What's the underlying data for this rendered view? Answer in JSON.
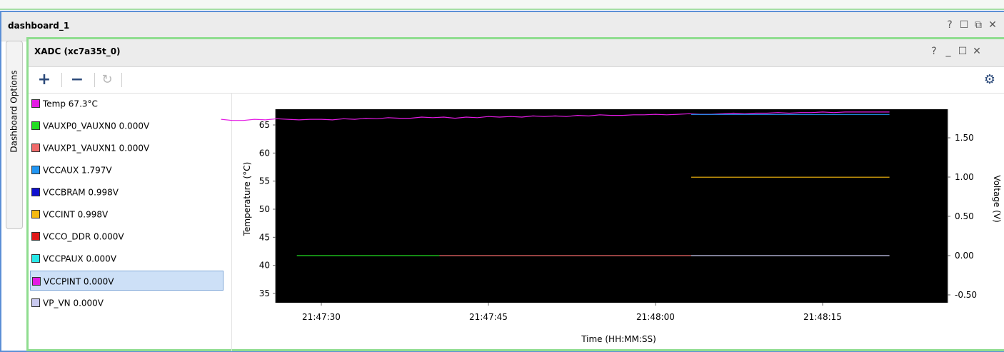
{
  "dashboard": {
    "title": "dashboard_1",
    "icons": [
      "?",
      "☐",
      "⧉",
      "✕"
    ]
  },
  "side_tab": {
    "label": "Dashboard Options"
  },
  "xadc": {
    "title": "XADC (xc7a35t_0)",
    "icons": [
      "?",
      "_",
      "☐",
      "✕"
    ],
    "toolbar": {
      "add": "+",
      "remove": "−",
      "refresh": "↻",
      "settings": "⚙"
    }
  },
  "legend": [
    {
      "label": "Temp  67.3°C",
      "color": "#e41be4"
    },
    {
      "label": "VAUXP0_VAUXN0  0.000V",
      "color": "#22dd22"
    },
    {
      "label": "VAUXP1_VAUXN1  0.000V",
      "color": "#f06a6a"
    },
    {
      "label": "VCCAUX  1.797V",
      "color": "#2196f3"
    },
    {
      "label": "VCCBRAM  0.998V",
      "color": "#1010d0"
    },
    {
      "label": "VCCINT  0.998V",
      "color": "#f5b90f"
    },
    {
      "label": "VCCO_DDR  0.000V",
      "color": "#e01818"
    },
    {
      "label": "VCCPAUX  0.000V",
      "color": "#28e8e8"
    },
    {
      "label": "VCCPINT  0.000V",
      "color": "#e41be4",
      "selected": true
    },
    {
      "label": "VP_VN  0.000V",
      "color": "#c9c9f0"
    }
  ],
  "chart_data": {
    "type": "line",
    "xlabel": "Time (HH:MM:SS)",
    "ylabel": "Temperature (°C)",
    "y2label": "Voltage (V)",
    "xticks": [
      "21:47:30",
      "21:47:45",
      "21:48:00",
      "21:48:15"
    ],
    "yticks": [
      35,
      40,
      45,
      50,
      55,
      60,
      65
    ],
    "y2ticks": [
      "-0.50",
      "0.00",
      "0.50",
      "1.00",
      "1.50"
    ],
    "background": "#000000",
    "series": [
      {
        "name": "Temp",
        "axis": "left",
        "color": "#e41be4",
        "points": [
          [
            21,
            66.0
          ],
          [
            22,
            65.8
          ],
          [
            23,
            65.8
          ],
          [
            24,
            66.0
          ],
          [
            25,
            65.9
          ],
          [
            26,
            66.1
          ],
          [
            27,
            66.0
          ],
          [
            28,
            65.9
          ],
          [
            29,
            66.0
          ],
          [
            30,
            66.0
          ],
          [
            31,
            65.9
          ],
          [
            32,
            66.1
          ],
          [
            33,
            66.0
          ],
          [
            34,
            66.2
          ],
          [
            35,
            66.1
          ],
          [
            36,
            66.3
          ],
          [
            37,
            66.2
          ],
          [
            38,
            66.2
          ],
          [
            39,
            66.4
          ],
          [
            40,
            66.3
          ],
          [
            41,
            66.4
          ],
          [
            42,
            66.2
          ],
          [
            43,
            66.4
          ],
          [
            44,
            66.3
          ],
          [
            45,
            66.5
          ],
          [
            46,
            66.4
          ],
          [
            47,
            66.5
          ],
          [
            48,
            66.4
          ],
          [
            49,
            66.6
          ],
          [
            50,
            66.5
          ],
          [
            51,
            66.6
          ],
          [
            52,
            66.5
          ],
          [
            53,
            66.7
          ],
          [
            54,
            66.6
          ],
          [
            55,
            66.8
          ],
          [
            56,
            66.7
          ],
          [
            57,
            66.7
          ],
          [
            58,
            66.8
          ],
          [
            59,
            66.8
          ],
          [
            60,
            66.9
          ],
          [
            61,
            66.8
          ],
          [
            62,
            66.9
          ],
          [
            63,
            67.0
          ],
          [
            64,
            66.9
          ],
          [
            65,
            66.9
          ],
          [
            66,
            67.0
          ],
          [
            67,
            67.1
          ],
          [
            68,
            67.0
          ],
          [
            69,
            67.1
          ],
          [
            70,
            67.1
          ],
          [
            71,
            67.2
          ],
          [
            72,
            67.1
          ],
          [
            73,
            67.2
          ],
          [
            74,
            67.2
          ],
          [
            75,
            67.3
          ],
          [
            76,
            67.2
          ],
          [
            77,
            67.3
          ],
          [
            78,
            67.3
          ],
          [
            79,
            67.3
          ],
          [
            80,
            67.3
          ],
          [
            81,
            67.3
          ]
        ]
      },
      {
        "name": "VCCAUX",
        "axis": "right",
        "color": "#2196f3",
        "points": [
          [
            63.2,
            1.797
          ],
          [
            81,
            1.797
          ]
        ]
      },
      {
        "name": "VCCINT",
        "axis": "right",
        "color": "#f5b90f",
        "points": [
          [
            63.2,
            0.998
          ],
          [
            81,
            0.998
          ]
        ]
      },
      {
        "name": "VAUXP0_VAUXN0",
        "axis": "right",
        "color": "#22dd22",
        "points": [
          [
            27.8,
            0.0
          ],
          [
            40.6,
            0.0
          ]
        ]
      },
      {
        "name": "VAUXP1_VAUXN1",
        "axis": "right",
        "color": "#f06a6a",
        "points": [
          [
            40.6,
            0.0
          ],
          [
            63.2,
            0.0
          ]
        ]
      },
      {
        "name": "VP_VN",
        "axis": "right",
        "color": "#c9c9f0",
        "points": [
          [
            63.2,
            0.0
          ],
          [
            81,
            0.0
          ]
        ]
      }
    ]
  }
}
